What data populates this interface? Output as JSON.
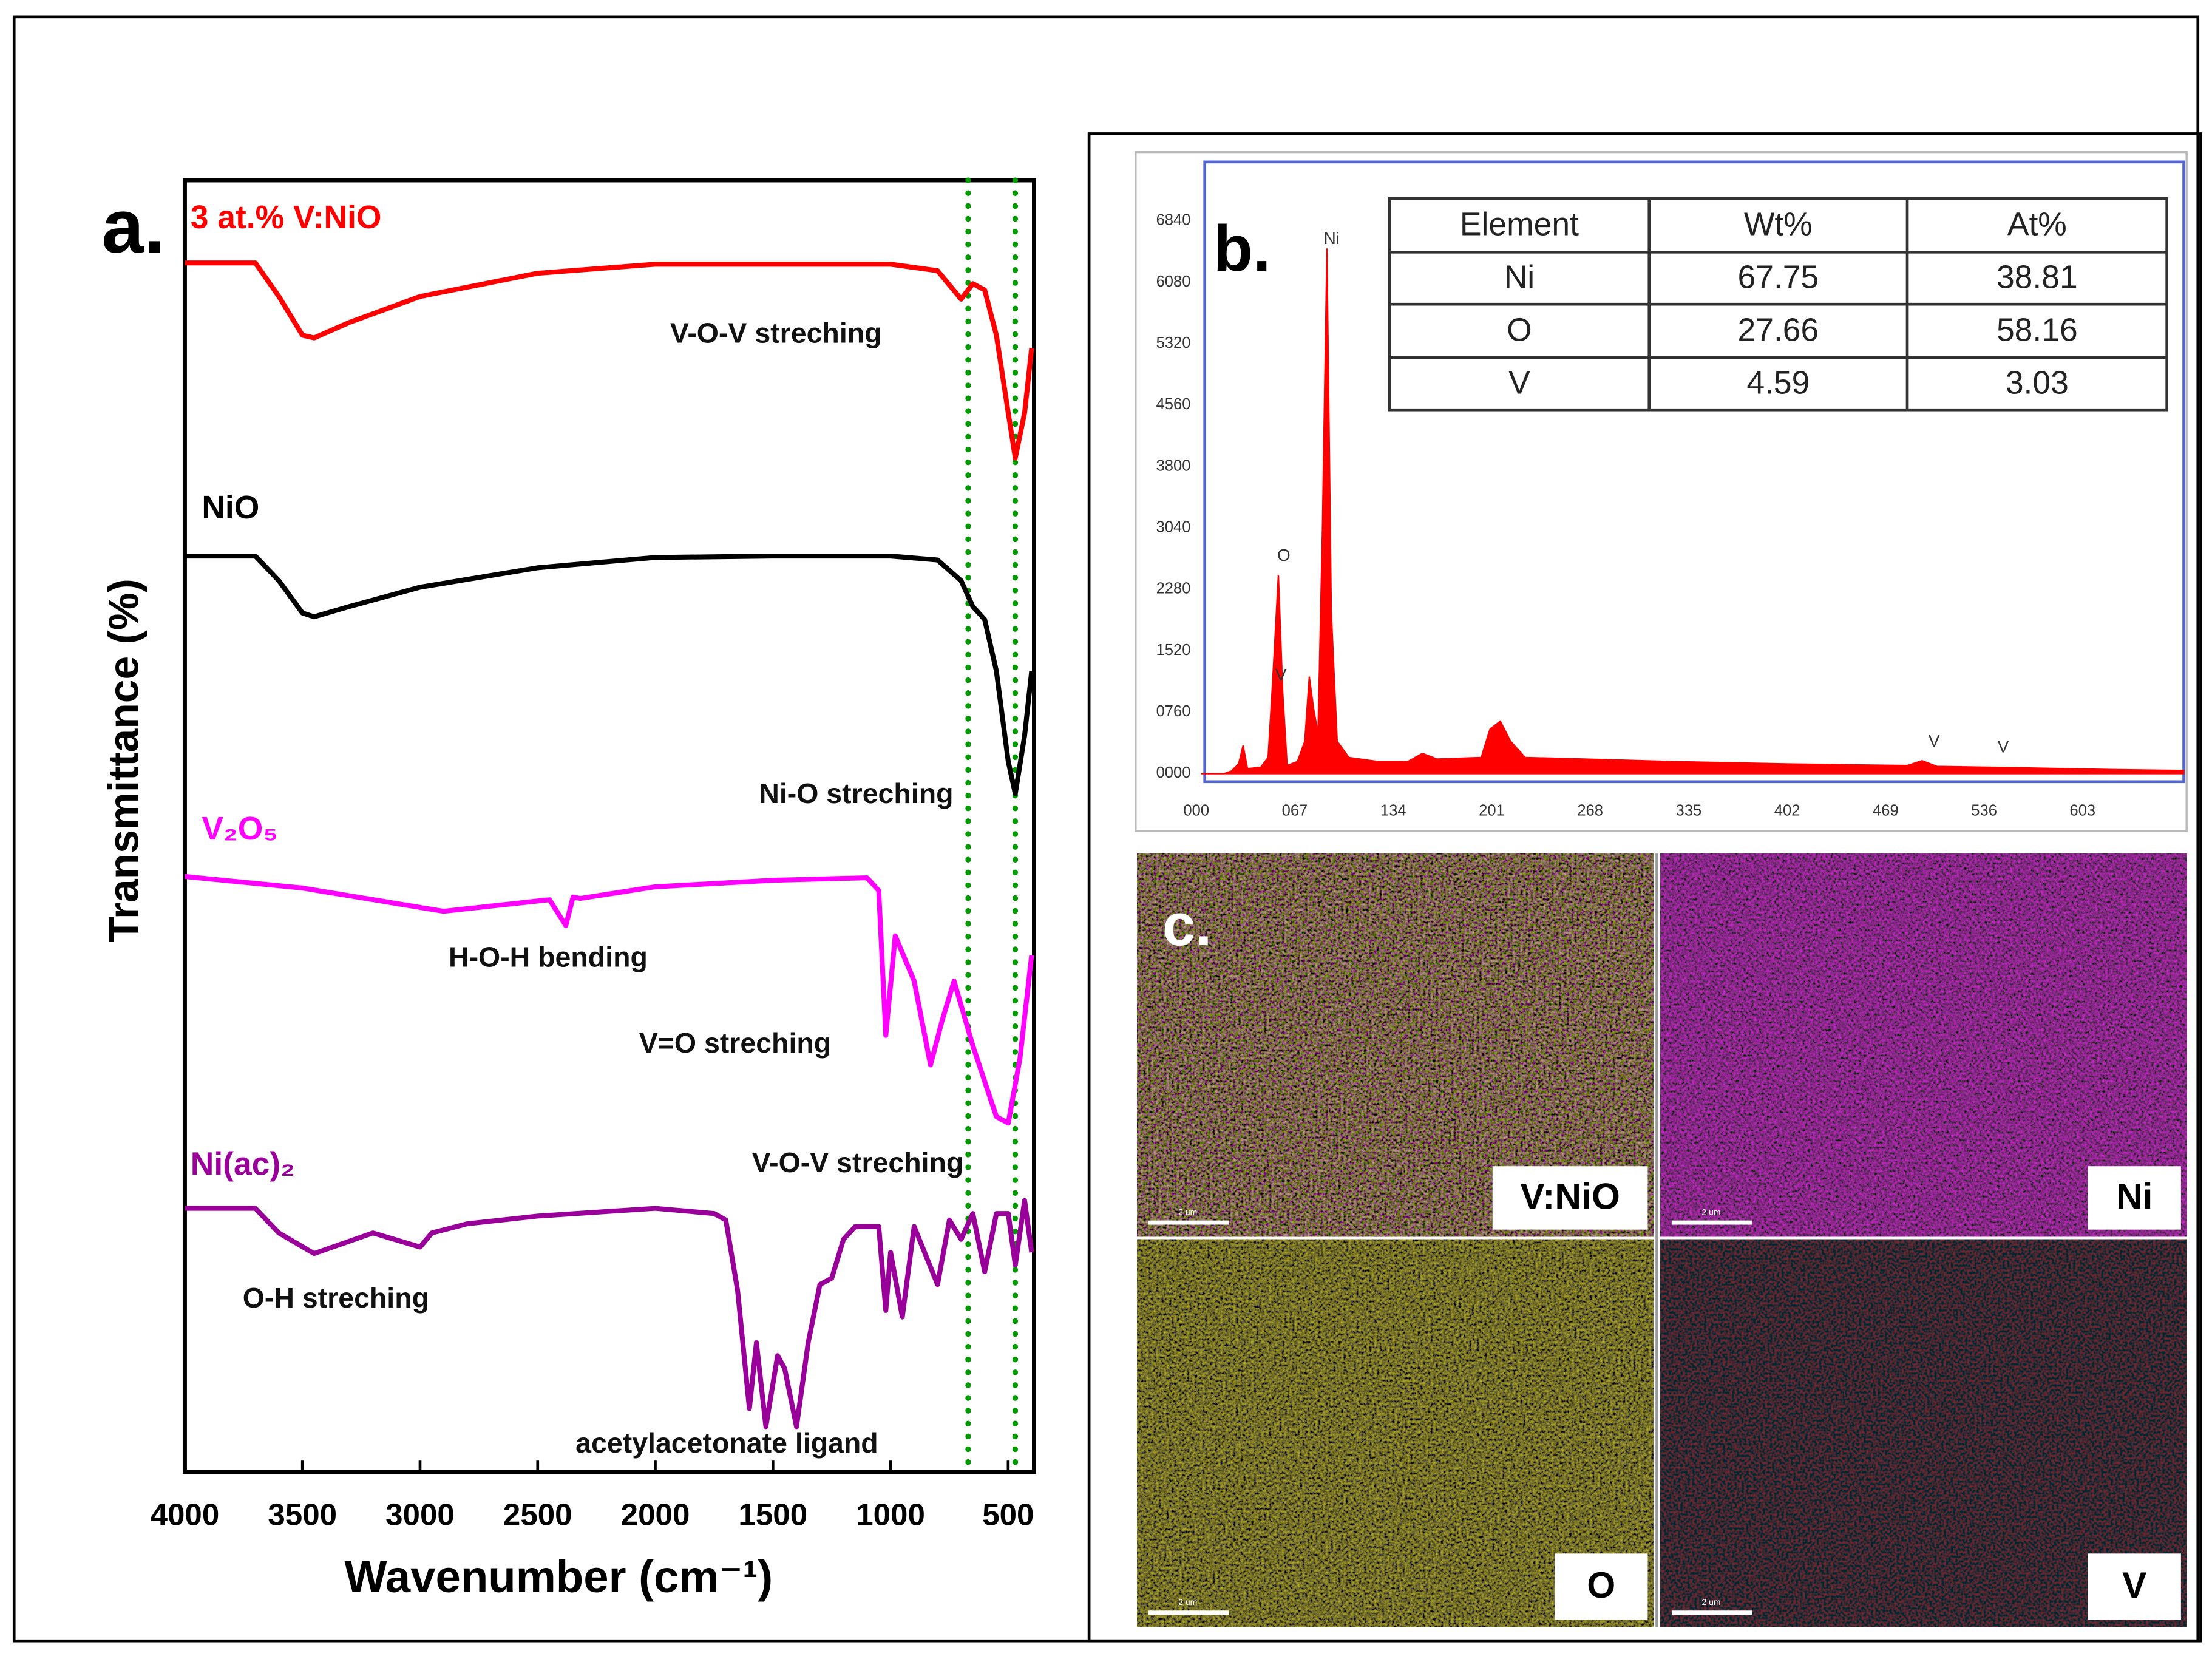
{
  "chart_data": [
    {
      "type": "line",
      "panel_label": "a.",
      "xlabel": "Wavenumber (cm⁻¹)",
      "ylabel": "Transmittance (%)",
      "xlim": [
        4000,
        390
      ],
      "xticks": [
        4000,
        3500,
        3000,
        2500,
        2000,
        1500,
        1000,
        500
      ],
      "ylim": [
        0,
        100
      ],
      "vlines": [
        670,
        470
      ],
      "series": [
        {
          "name": "3 at.% V:NiO",
          "color": "#ff0000",
          "x": [
            4000,
            3700,
            3600,
            3500,
            3450,
            3300,
            3000,
            2500,
            2000,
            1500,
            1000,
            800,
            700,
            650,
            600,
            550,
            500,
            470,
            430,
            400
          ],
          "values": [
            93.6,
            93.6,
            91,
            88,
            87.8,
            89,
            91,
            92.8,
            93.5,
            93.5,
            93.5,
            93,
            90.8,
            92,
            91.5,
            88,
            82,
            78.5,
            82,
            87
          ]
        },
        {
          "name": "NiO",
          "color": "#000000",
          "x": [
            4000,
            3700,
            3600,
            3500,
            3450,
            3300,
            3000,
            2500,
            2000,
            1500,
            1000,
            800,
            700,
            650,
            600,
            550,
            500,
            470,
            430,
            400
          ],
          "values": [
            70.9,
            70.9,
            69,
            66.5,
            66.2,
            67,
            68.5,
            70,
            70.8,
            70.9,
            70.9,
            70.6,
            69,
            67,
            66,
            62,
            55,
            52.5,
            57,
            62
          ]
        },
        {
          "name": "V₂O₅",
          "color": "#ff00ff",
          "x": [
            4000,
            3500,
            2900,
            2450,
            2380,
            2350,
            2320,
            2000,
            1500,
            1100,
            1050,
            1020,
            980,
            900,
            830,
            780,
            730,
            650,
            550,
            500,
            450,
            400
          ],
          "values": [
            46.1,
            45.2,
            43.4,
            44.3,
            42.3,
            44.5,
            44.4,
            45.3,
            45.8,
            46,
            45,
            33.8,
            41.5,
            38,
            31.5,
            35,
            38,
            33,
            27.5,
            27,
            32,
            40
          ]
        },
        {
          "name": "Ni(ac)₂",
          "color": "#990099",
          "x": [
            4000,
            3700,
            3600,
            3450,
            3200,
            3000,
            2950,
            2800,
            2500,
            2000,
            1750,
            1700,
            1650,
            1600,
            1570,
            1530,
            1480,
            1450,
            1400,
            1350,
            1300,
            1250,
            1200,
            1150,
            1050,
            1020,
            1000,
            950,
            900,
            800,
            750,
            700,
            650,
            600,
            550,
            500,
            470,
            430,
            400
          ],
          "values": [
            20.4,
            20.4,
            18.5,
            16.9,
            18.5,
            17.4,
            18.5,
            19.2,
            19.8,
            20.4,
            20,
            19.5,
            14,
            4.9,
            10,
            3.5,
            9,
            8,
            3.5,
            10,
            14.5,
            15,
            18,
            19,
            19,
            12.5,
            17,
            12,
            19,
            14.5,
            19.5,
            18,
            20,
            15.5,
            20,
            20,
            16,
            21,
            17
          ]
        }
      ],
      "annotations": [
        "V-O-V streching",
        "Ni-O streching",
        "H-O-H bending",
        "V=O streching",
        "V-O-V streching",
        "O-H streching",
        "acetylacetonate ligand"
      ]
    },
    {
      "type": "area",
      "panel_label": "b.",
      "color": "#ff0000",
      "xlim": [
        0,
        668
      ],
      "ylim": [
        -100,
        7570
      ],
      "xticks": [
        {
          "value": 0,
          "label": "000"
        },
        {
          "value": 67,
          "label": "067"
        },
        {
          "value": 134,
          "label": "134"
        },
        {
          "value": 201,
          "label": "201"
        },
        {
          "value": 268,
          "label": "268"
        },
        {
          "value": 335,
          "label": "335"
        },
        {
          "value": 402,
          "label": "402"
        },
        {
          "value": 469,
          "label": "469"
        },
        {
          "value": 536,
          "label": "536"
        },
        {
          "value": 603,
          "label": "603"
        }
      ],
      "yticks": [
        {
          "value": 0,
          "label": "0000"
        },
        {
          "value": 760,
          "label": "0760"
        },
        1520,
        2280,
        3040,
        3800,
        4560,
        5320,
        6080,
        6840
      ],
      "x": [
        0,
        15,
        20,
        25,
        28,
        31,
        40,
        45,
        48,
        52,
        55,
        58,
        65,
        70,
        73,
        76,
        79,
        82,
        85,
        88,
        92,
        100,
        120,
        140,
        150,
        160,
        190,
        196,
        203,
        210,
        220,
        260,
        320,
        400,
        480,
        490,
        500,
        560,
        620,
        668
      ],
      "values": [
        0,
        0,
        30,
        120,
        350,
        60,
        80,
        200,
        1100,
        2460,
        1000,
        100,
        150,
        400,
        1200,
        800,
        500,
        3000,
        6500,
        2000,
        400,
        200,
        150,
        150,
        250,
        180,
        200,
        550,
        650,
        400,
        200,
        180,
        150,
        120,
        100,
        160,
        90,
        70,
        50,
        40
      ],
      "peak_labels": [
        "O",
        "Ni",
        "V",
        "V",
        "V"
      ]
    }
  ],
  "table": {
    "columns": [
      "Element",
      "Wt%",
      "At%"
    ],
    "rows": [
      [
        "Ni",
        67.75,
        38.81
      ],
      [
        "O",
        27.66,
        58.16
      ],
      [
        "V",
        4.59,
        3.03
      ]
    ]
  },
  "maps": {
    "panel_label": "c.",
    "tiles": [
      {
        "label": "V:NiO",
        "scale_bar": "2 um"
      },
      {
        "label": "Ni",
        "scale_bar": "2 um"
      },
      {
        "label": "O",
        "scale_bar": "2 um"
      },
      {
        "label": "V",
        "scale_bar": "2 um"
      }
    ]
  }
}
